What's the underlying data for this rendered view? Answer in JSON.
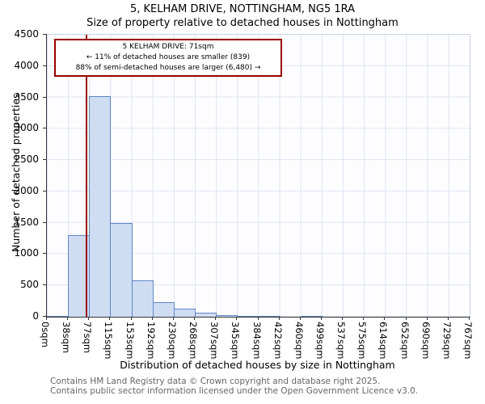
{
  "title": "5, KELHAM DRIVE, NOTTINGHAM, NG5 1RA",
  "subtitle": "Size of property relative to detached houses in Nottingham",
  "annotation": {
    "line1": "5 KELHAM DRIVE: 71sqm",
    "line2": "← 11% of detached houses are smaller (839)",
    "line3": "88% of semi-detached houses are larger (6,480) →"
  },
  "footer": {
    "line1": "Contains HM Land Registry data © Crown copyright and database right 2025.",
    "line2": "Contains public sector information licensed under the Open Government Licence v3.0."
  },
  "chart_data": {
    "type": "bar",
    "title": "5, KELHAM DRIVE, NOTTINGHAM, NG5 1RA — Size of property relative to detached houses in Nottingham",
    "xlabel": "Distribution of detached houses by size in Nottingham",
    "ylabel": "Number of detached properties",
    "categories": [
      "0sqm",
      "38sqm",
      "77sqm",
      "115sqm",
      "153sqm",
      "192sqm",
      "230sqm",
      "268sqm",
      "307sqm",
      "345sqm",
      "384sqm",
      "422sqm",
      "460sqm",
      "499sqm",
      "537sqm",
      "575sqm",
      "614sqm",
      "652sqm",
      "690sqm",
      "729sqm",
      "767sqm"
    ],
    "values": [
      10,
      1300,
      3520,
      1490,
      580,
      230,
      125,
      70,
      30,
      15,
      8,
      0,
      12,
      0,
      0,
      0,
      0,
      0,
      0,
      0
    ],
    "ylim": [
      0,
      4500
    ],
    "yticks": [
      0,
      500,
      1000,
      1500,
      2000,
      2500,
      3000,
      3500,
      4000,
      4500
    ],
    "grid": true,
    "legend": "none",
    "bar_fill": "#cfddf3",
    "bar_border": "#5e86c4",
    "marker": {
      "label": "71sqm",
      "value": 71,
      "axis_max": 767,
      "color": "#990000"
    }
  }
}
